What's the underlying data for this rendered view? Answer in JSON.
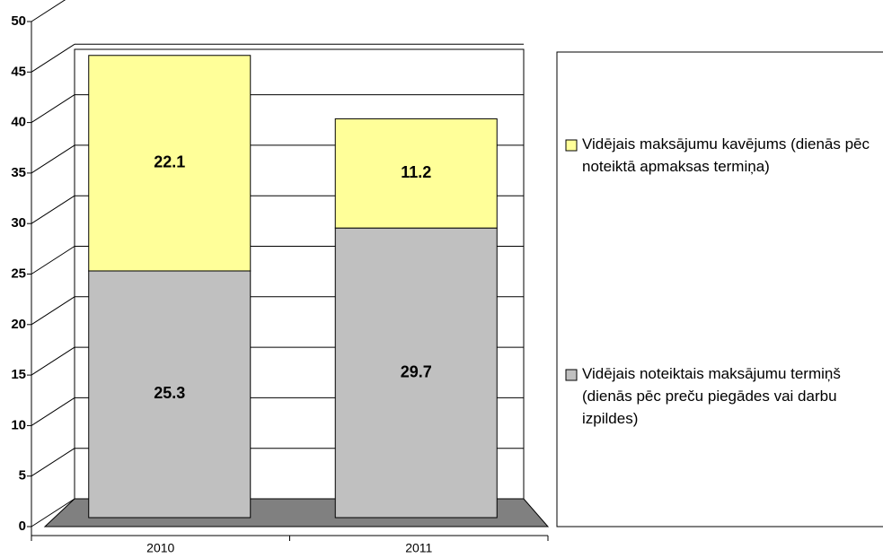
{
  "chart_data": {
    "type": "bar",
    "stacked": true,
    "categories": [
      "2010",
      "2011"
    ],
    "series": [
      {
        "name": "Vidējais noteiktais maksājumu termiņš (dienās pēc preču piegādes vai darbu izpildes)",
        "color": "#c0c0c0",
        "values": [
          25.3,
          29.7
        ]
      },
      {
        "name": "Vidējais maksājumu kavējums (dienās pēc noteiktā apmaksas termiņa)",
        "color": "#ffff99",
        "values": [
          22.1,
          11.2
        ]
      }
    ],
    "ylim": [
      0,
      50
    ],
    "yticks": [
      0,
      5,
      10,
      15,
      20,
      25,
      30,
      35,
      40,
      45,
      50
    ],
    "grid": true,
    "legend": "right"
  }
}
